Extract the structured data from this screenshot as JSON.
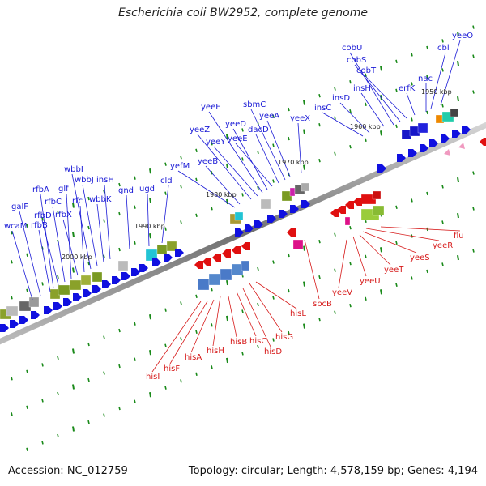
{
  "title": "Escherichia coli BW2952, complete genome",
  "accession_label": "Accession: NC_012759",
  "topology_label": "Topology: circular; Length: 4,578,159 bp; Genes: 4,194",
  "colors": {
    "forward_label": "#1a1ad6",
    "reverse_label": "#d61a1a",
    "forward_arrow": "#1010e0",
    "reverse_arrow": "#e01010",
    "backbone": "#888888",
    "tick": "#1a8a1a"
  },
  "ruler": [
    {
      "label": "2000 kbp"
    },
    {
      "label": "1990 kbp"
    },
    {
      "label": "1980 kbp"
    },
    {
      "label": "1970 kbp"
    },
    {
      "label": "1960 kbp"
    },
    {
      "label": "1950 kbp"
    }
  ],
  "forward_genes": [
    "wcaM",
    "galF",
    "rfbB",
    "rfbA",
    "rfbD",
    "rfbC",
    "glf",
    "rfbX",
    "rfc",
    "wbbI",
    "wbbJ",
    "wbbK",
    "insH",
    "gnd",
    "ugd",
    "cld",
    "yefM",
    "yeeB",
    "yeeZ",
    "yeeY",
    "yeeF",
    "yeeD",
    "yeeE",
    "dacD",
    "sbmC",
    "yeeA",
    "yeeX",
    "insC",
    "insD",
    "insH",
    "cobU",
    "cobS",
    "cobT",
    "erfK",
    "nac",
    "cbl",
    "yeeO"
  ],
  "reverse_genes": [
    "hisI",
    "hisF",
    "hisA",
    "hisH",
    "hisB",
    "hisC",
    "hisD",
    "hisG",
    "hisL",
    "sbcB",
    "yeeV",
    "yeeU",
    "yeeT",
    "yeeS",
    "yeeR",
    "flu"
  ]
}
